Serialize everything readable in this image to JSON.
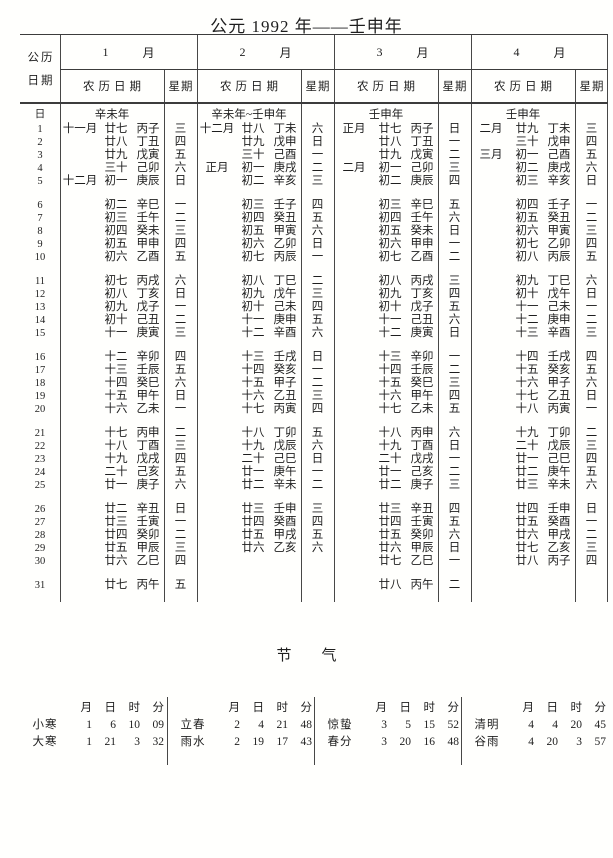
{
  "title": "公元 1992 年——壬申年",
  "table": {
    "corner_line1": "公历",
    "corner_line2": "日期",
    "day_symbol": "日",
    "month_suffix": "月",
    "lunar_header": "农历日期",
    "week_header": "星期",
    "months": [
      {
        "number": "1",
        "year_label": "辛未年"
      },
      {
        "number": "2",
        "year_label": "辛未年~壬申年"
      },
      {
        "number": "3",
        "year_label": "壬申年"
      },
      {
        "number": "4",
        "year_label": "壬申年"
      }
    ],
    "rows": [
      {
        "day": "1",
        "cells": [
          [
            "十一月",
            "廿七",
            "丙子",
            "三"
          ],
          [
            "十二月",
            "廿八",
            "丁未",
            "六"
          ],
          [
            "正月",
            "廿七",
            "丙子",
            "日"
          ],
          [
            "二月",
            "廿九",
            "丁未",
            "三"
          ]
        ]
      },
      {
        "day": "2",
        "cells": [
          [
            "",
            "廿八",
            "丁丑",
            "四"
          ],
          [
            "",
            "廿九",
            "戊申",
            "日"
          ],
          [
            "",
            "廿八",
            "丁丑",
            "一"
          ],
          [
            "",
            "三十",
            "戊申",
            "四"
          ]
        ]
      },
      {
        "day": "3",
        "cells": [
          [
            "",
            "廿九",
            "戊寅",
            "五"
          ],
          [
            "",
            "三十",
            "己酉",
            "一"
          ],
          [
            "",
            "廿九",
            "戊寅",
            "二"
          ],
          [
            "三月",
            "初一",
            "己酉",
            "五"
          ]
        ]
      },
      {
        "day": "4",
        "cells": [
          [
            "",
            "三十",
            "己卯",
            "六"
          ],
          [
            "正月",
            "初一",
            "庚戌",
            "二"
          ],
          [
            "二月",
            "初一",
            "己卯",
            "三"
          ],
          [
            "",
            "初二",
            "庚戌",
            "六"
          ]
        ]
      },
      {
        "day": "5",
        "cells": [
          [
            "十二月",
            "初一",
            "庚辰",
            "日"
          ],
          [
            "",
            "初二",
            "辛亥",
            "三"
          ],
          [
            "",
            "初二",
            "庚辰",
            "四"
          ],
          [
            "",
            "初三",
            "辛亥",
            "日"
          ]
        ]
      },
      {
        "day": "6",
        "cells": [
          [
            "",
            "初二",
            "辛巳",
            "一"
          ],
          [
            "",
            "初三",
            "壬子",
            "四"
          ],
          [
            "",
            "初三",
            "辛巳",
            "五"
          ],
          [
            "",
            "初四",
            "壬子",
            "一"
          ]
        ]
      },
      {
        "day": "7",
        "cells": [
          [
            "",
            "初三",
            "壬午",
            "二"
          ],
          [
            "",
            "初四",
            "癸丑",
            "五"
          ],
          [
            "",
            "初四",
            "壬午",
            "六"
          ],
          [
            "",
            "初五",
            "癸丑",
            "二"
          ]
        ]
      },
      {
        "day": "8",
        "cells": [
          [
            "",
            "初四",
            "癸未",
            "三"
          ],
          [
            "",
            "初五",
            "甲寅",
            "六"
          ],
          [
            "",
            "初五",
            "癸未",
            "日"
          ],
          [
            "",
            "初六",
            "甲寅",
            "三"
          ]
        ]
      },
      {
        "day": "9",
        "cells": [
          [
            "",
            "初五",
            "甲申",
            "四"
          ],
          [
            "",
            "初六",
            "乙卯",
            "日"
          ],
          [
            "",
            "初六",
            "甲申",
            "一"
          ],
          [
            "",
            "初七",
            "乙卯",
            "四"
          ]
        ]
      },
      {
        "day": "10",
        "cells": [
          [
            "",
            "初六",
            "乙酉",
            "五"
          ],
          [
            "",
            "初七",
            "丙辰",
            "一"
          ],
          [
            "",
            "初七",
            "乙酉",
            "二"
          ],
          [
            "",
            "初八",
            "丙辰",
            "五"
          ]
        ]
      },
      {
        "day": "11",
        "cells": [
          [
            "",
            "初七",
            "丙戌",
            "六"
          ],
          [
            "",
            "初八",
            "丁巳",
            "二"
          ],
          [
            "",
            "初八",
            "丙戌",
            "三"
          ],
          [
            "",
            "初九",
            "丁巳",
            "六"
          ]
        ]
      },
      {
        "day": "12",
        "cells": [
          [
            "",
            "初八",
            "丁亥",
            "日"
          ],
          [
            "",
            "初九",
            "戊午",
            "三"
          ],
          [
            "",
            "初九",
            "丁亥",
            "四"
          ],
          [
            "",
            "初十",
            "戊午",
            "日"
          ]
        ]
      },
      {
        "day": "13",
        "cells": [
          [
            "",
            "初九",
            "戊子",
            "一"
          ],
          [
            "",
            "初十",
            "己未",
            "四"
          ],
          [
            "",
            "初十",
            "戊子",
            "五"
          ],
          [
            "",
            "十一",
            "己未",
            "一"
          ]
        ]
      },
      {
        "day": "14",
        "cells": [
          [
            "",
            "初十",
            "己丑",
            "二"
          ],
          [
            "",
            "十一",
            "庚申",
            "五"
          ],
          [
            "",
            "十一",
            "己丑",
            "六"
          ],
          [
            "",
            "十二",
            "庚申",
            "二"
          ]
        ]
      },
      {
        "day": "15",
        "cells": [
          [
            "",
            "十一",
            "庚寅",
            "三"
          ],
          [
            "",
            "十二",
            "辛酉",
            "六"
          ],
          [
            "",
            "十二",
            "庚寅",
            "日"
          ],
          [
            "",
            "十三",
            "辛酉",
            "三"
          ]
        ]
      },
      {
        "day": "16",
        "cells": [
          [
            "",
            "十二",
            "辛卯",
            "四"
          ],
          [
            "",
            "十三",
            "壬戌",
            "日"
          ],
          [
            "",
            "十三",
            "辛卯",
            "一"
          ],
          [
            "",
            "十四",
            "壬戌",
            "四"
          ]
        ]
      },
      {
        "day": "17",
        "cells": [
          [
            "",
            "十三",
            "壬辰",
            "五"
          ],
          [
            "",
            "十四",
            "癸亥",
            "一"
          ],
          [
            "",
            "十四",
            "壬辰",
            "二"
          ],
          [
            "",
            "十五",
            "癸亥",
            "五"
          ]
        ]
      },
      {
        "day": "18",
        "cells": [
          [
            "",
            "十四",
            "癸巳",
            "六"
          ],
          [
            "",
            "十五",
            "甲子",
            "二"
          ],
          [
            "",
            "十五",
            "癸巳",
            "三"
          ],
          [
            "",
            "十六",
            "甲子",
            "六"
          ]
        ]
      },
      {
        "day": "19",
        "cells": [
          [
            "",
            "十五",
            "甲午",
            "日"
          ],
          [
            "",
            "十六",
            "乙丑",
            "三"
          ],
          [
            "",
            "十六",
            "甲午",
            "四"
          ],
          [
            "",
            "十七",
            "乙丑",
            "日"
          ]
        ]
      },
      {
        "day": "20",
        "cells": [
          [
            "",
            "十六",
            "乙未",
            "一"
          ],
          [
            "",
            "十七",
            "丙寅",
            "四"
          ],
          [
            "",
            "十七",
            "乙未",
            "五"
          ],
          [
            "",
            "十八",
            "丙寅",
            "一"
          ]
        ]
      },
      {
        "day": "21",
        "cells": [
          [
            "",
            "十七",
            "丙申",
            "二"
          ],
          [
            "",
            "十八",
            "丁卯",
            "五"
          ],
          [
            "",
            "十八",
            "丙申",
            "六"
          ],
          [
            "",
            "十九",
            "丁卯",
            "二"
          ]
        ]
      },
      {
        "day": "22",
        "cells": [
          [
            "",
            "十八",
            "丁酉",
            "三"
          ],
          [
            "",
            "十九",
            "戊辰",
            "六"
          ],
          [
            "",
            "十九",
            "丁酉",
            "日"
          ],
          [
            "",
            "二十",
            "戊辰",
            "三"
          ]
        ]
      },
      {
        "day": "23",
        "cells": [
          [
            "",
            "十九",
            "戊戌",
            "四"
          ],
          [
            "",
            "二十",
            "己巳",
            "日"
          ],
          [
            "",
            "二十",
            "戊戌",
            "一"
          ],
          [
            "",
            "廿一",
            "己巳",
            "四"
          ]
        ]
      },
      {
        "day": "24",
        "cells": [
          [
            "",
            "二十",
            "己亥",
            "五"
          ],
          [
            "",
            "廿一",
            "庚午",
            "一"
          ],
          [
            "",
            "廿一",
            "己亥",
            "二"
          ],
          [
            "",
            "廿二",
            "庚午",
            "五"
          ]
        ]
      },
      {
        "day": "25",
        "cells": [
          [
            "",
            "廿一",
            "庚子",
            "六"
          ],
          [
            "",
            "廿二",
            "辛未",
            "二"
          ],
          [
            "",
            "廿二",
            "庚子",
            "三"
          ],
          [
            "",
            "廿三",
            "辛未",
            "六"
          ]
        ]
      },
      {
        "day": "26",
        "cells": [
          [
            "",
            "廿二",
            "辛丑",
            "日"
          ],
          [
            "",
            "廿三",
            "壬申",
            "三"
          ],
          [
            "",
            "廿三",
            "辛丑",
            "四"
          ],
          [
            "",
            "廿四",
            "壬申",
            "日"
          ]
        ]
      },
      {
        "day": "27",
        "cells": [
          [
            "",
            "廿三",
            "壬寅",
            "一"
          ],
          [
            "",
            "廿四",
            "癸酉",
            "四"
          ],
          [
            "",
            "廿四",
            "壬寅",
            "五"
          ],
          [
            "",
            "廿五",
            "癸酉",
            "一"
          ]
        ]
      },
      {
        "day": "28",
        "cells": [
          [
            "",
            "廿四",
            "癸卯",
            "二"
          ],
          [
            "",
            "廿五",
            "甲戌",
            "五"
          ],
          [
            "",
            "廿五",
            "癸卯",
            "六"
          ],
          [
            "",
            "廿六",
            "甲戌",
            "二"
          ]
        ]
      },
      {
        "day": "29",
        "cells": [
          [
            "",
            "廿五",
            "甲辰",
            "三"
          ],
          [
            "",
            "廿六",
            "乙亥",
            "六"
          ],
          [
            "",
            "廿六",
            "甲辰",
            "日"
          ],
          [
            "",
            "廿七",
            "乙亥",
            "三"
          ]
        ]
      },
      {
        "day": "30",
        "cells": [
          [
            "",
            "廿六",
            "乙巳",
            "四"
          ],
          null,
          [
            "",
            "廿七",
            "乙巳",
            "一"
          ],
          [
            "",
            "廿八",
            "丙子",
            "四"
          ]
        ]
      },
      {
        "day": "31",
        "cells": [
          [
            "",
            "廿七",
            "丙午",
            "五"
          ],
          null,
          [
            "",
            "廿八",
            "丙午",
            "二"
          ],
          null
        ]
      }
    ]
  },
  "solar_terms": {
    "title": "节　　气",
    "col_headers": [
      "月",
      "日",
      "时",
      "分"
    ],
    "groups": [
      {
        "terms": [
          {
            "name": "小寒",
            "values": [
              "1",
              "6",
              "10",
              "09"
            ]
          },
          {
            "name": "大寒",
            "values": [
              "1",
              "21",
              "3",
              "32"
            ]
          }
        ]
      },
      {
        "terms": [
          {
            "name": "立春",
            "values": [
              "2",
              "4",
              "21",
              "48"
            ]
          },
          {
            "name": "雨水",
            "values": [
              "2",
              "19",
              "17",
              "43"
            ]
          }
        ]
      },
      {
        "terms": [
          {
            "name": "惊蛰",
            "values": [
              "3",
              "5",
              "15",
              "52"
            ]
          },
          {
            "name": "春分",
            "values": [
              "3",
              "20",
              "16",
              "48"
            ]
          }
        ]
      },
      {
        "terms": [
          {
            "name": "清明",
            "values": [
              "4",
              "4",
              "20",
              "45"
            ]
          },
          {
            "name": "谷雨",
            "values": [
              "4",
              "20",
              "3",
              "57"
            ]
          }
        ]
      }
    ]
  }
}
